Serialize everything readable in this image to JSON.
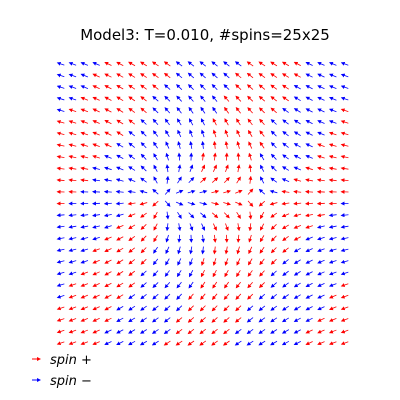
{
  "chart_data": {
    "type": "quiver",
    "title": "Model3: T=0.010, #spins=25x25",
    "grid_size": [
      25,
      25
    ],
    "xlabel": "",
    "ylabel": "",
    "axes_visible": false,
    "grid": false,
    "legend_position": "bottom-left",
    "series": [
      {
        "name": "spin +",
        "name_tex": "spin",
        "name_sup": "+",
        "color": "#ff0000"
      },
      {
        "name": "spin −",
        "name_tex": "spin",
        "name_sup": "−",
        "color": "#0000ff"
      }
    ],
    "field_model": {
      "description_note": "",
      "vortex_centers": [
        [
          16.5,
          11.5
        ],
        [
          8.5,
          11.5
        ]
      ],
      "vortex_charges": [
        1,
        -1
      ]
    }
  }
}
